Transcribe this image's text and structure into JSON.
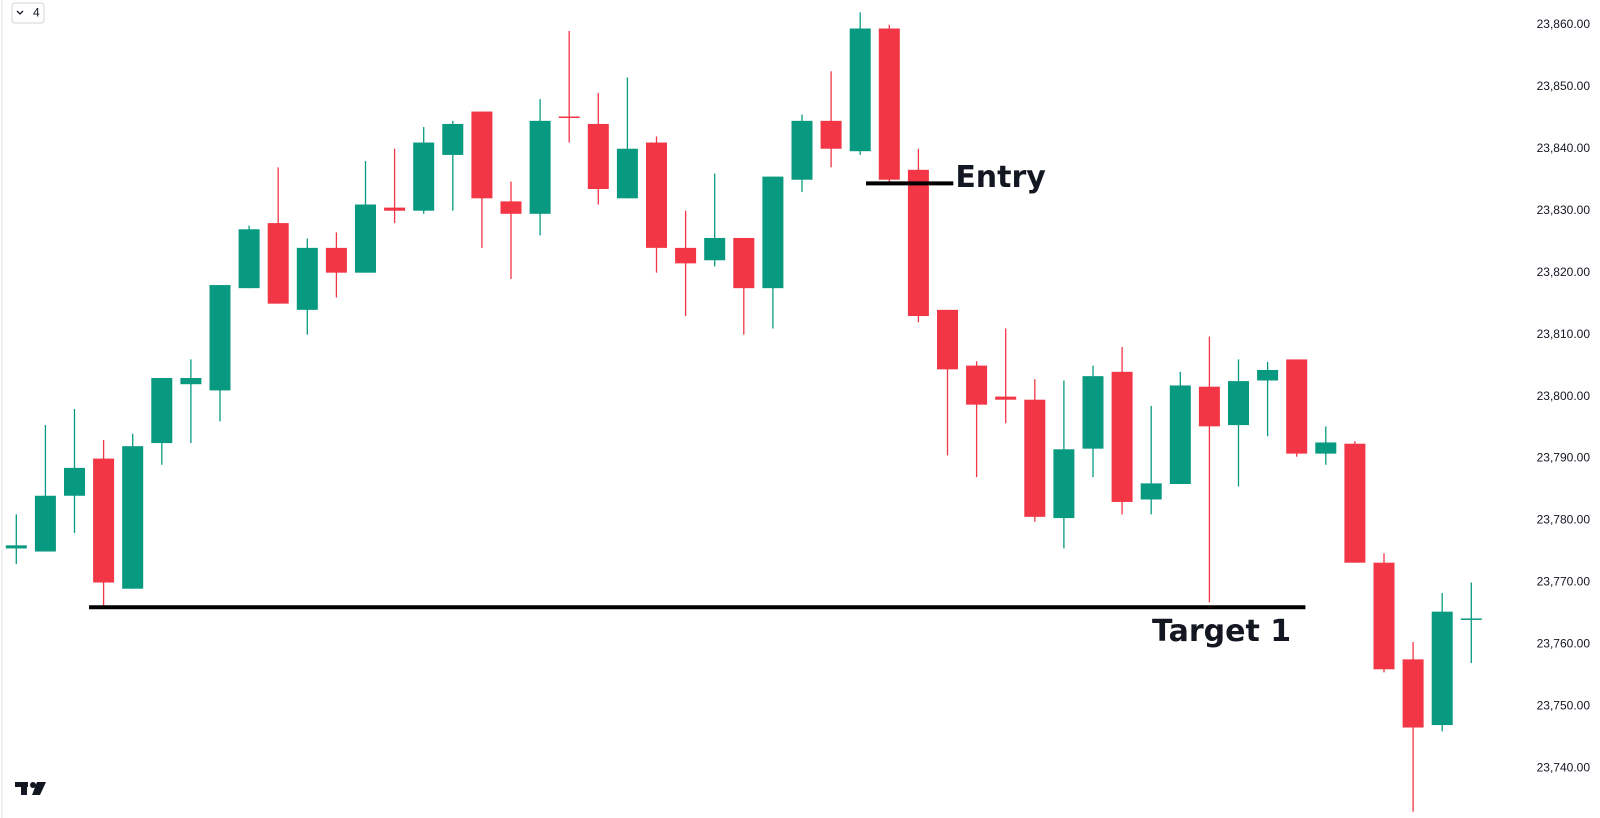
{
  "toolbar": {
    "interval": "4"
  },
  "chart_data": {
    "type": "candlestick",
    "up_color": "#089981",
    "down_color": "#f23645",
    "open": [
      23775.5,
      23775,
      23784,
      23790,
      23769,
      23792.5,
      23802,
      23801,
      23817.5,
      23828,
      23814,
      23824,
      23820,
      23830.5,
      23830,
      23839,
      23846,
      23831.5,
      23829.5,
      23845.2,
      23844,
      23832,
      23841,
      23824,
      23822,
      23825.6,
      23817.5,
      23835,
      23844.5,
      23839.6,
      23859.4,
      23836.6,
      23814,
      23805,
      23800,
      23799.5,
      23780.4,
      23791.6,
      23804,
      23783.4,
      23785.9,
      23801.6,
      23795.4,
      23802.6,
      23806,
      23790.8,
      23792.4,
      23773.2,
      23757.6,
      23747,
      23764
    ],
    "high": [
      23781,
      23795.4,
      23798,
      23793,
      23794,
      23803,
      23806,
      23818,
      23827.6,
      23837,
      23825.5,
      23826.5,
      23838,
      23840,
      23843.5,
      23844.5,
      23846,
      23834.7,
      23848,
      23859,
      23849,
      23851.5,
      23842,
      23830,
      23836,
      23825.6,
      23835.5,
      23845.5,
      23852.5,
      23862,
      23860,
      23840,
      23814,
      23805.7,
      23811,
      23802.8,
      23802.6,
      23805,
      23808,
      23798.5,
      23804,
      23809.7,
      23806,
      23805.6,
      23806,
      23795.2,
      23792.8,
      23774.7,
      23760.4,
      23768.3,
      23770
    ],
    "low": [
      23773,
      23775,
      23778,
      23766,
      23769,
      23789,
      23792.5,
      23796,
      23817.5,
      23815,
      23810,
      23816,
      23820,
      23828,
      23829.5,
      23830,
      23824,
      23819,
      23826,
      23841,
      23831,
      23832,
      23820,
      23813,
      23821,
      23810,
      23811,
      23833,
      23837,
      23839,
      23834.7,
      23812,
      23790.5,
      23787,
      23795.7,
      23779.8,
      23775.5,
      23787,
      23781,
      23781,
      23785.9,
      23766.8,
      23785.5,
      23793.6,
      23790.3,
      23789,
      23773.2,
      23755.5,
      23733,
      23746,
      23757
    ],
    "close": [
      23776,
      23784,
      23788.5,
      23770,
      23792,
      23803,
      23803,
      23818,
      23827,
      23815,
      23824,
      23820,
      23831,
      23830,
      23841,
      23844,
      23832,
      23829.5,
      23844.5,
      23845,
      23833.5,
      23840,
      23824,
      23821.5,
      23825.6,
      23817.5,
      23835.5,
      23844.5,
      23840,
      23859.4,
      23835,
      23813,
      23804.4,
      23798.7,
      23799.5,
      23780.6,
      23791.5,
      23803.3,
      23783,
      23786,
      23801.8,
      23795.2,
      23802.5,
      23804.3,
      23790.8,
      23792.6,
      23773.2,
      23756,
      23746.6,
      23765.3,
      23764.2
    ],
    "ylim": [
      23732,
      23864
    ],
    "yticks": [
      {
        "value": 23740,
        "label": "23,740.00"
      },
      {
        "value": 23750,
        "label": "23,750.00"
      },
      {
        "value": 23760,
        "label": "23,760.00"
      },
      {
        "value": 23770,
        "label": "23,770.00"
      },
      {
        "value": 23780,
        "label": "23,780.00"
      },
      {
        "value": 23790,
        "label": "23,790.00"
      },
      {
        "value": 23800,
        "label": "23,800.00"
      },
      {
        "value": 23810,
        "label": "23,810.00"
      },
      {
        "value": 23820,
        "label": "23,820.00"
      },
      {
        "value": 23830,
        "label": "23,830.00"
      },
      {
        "value": 23840,
        "label": "23,840.00"
      },
      {
        "value": 23850,
        "label": "23,850.00"
      },
      {
        "value": 23860,
        "label": "23,860.00"
      }
    ],
    "levels": [
      {
        "label": "Entry",
        "value": 23834.4
      },
      {
        "label": "Target 1",
        "value": 23766
      }
    ]
  }
}
